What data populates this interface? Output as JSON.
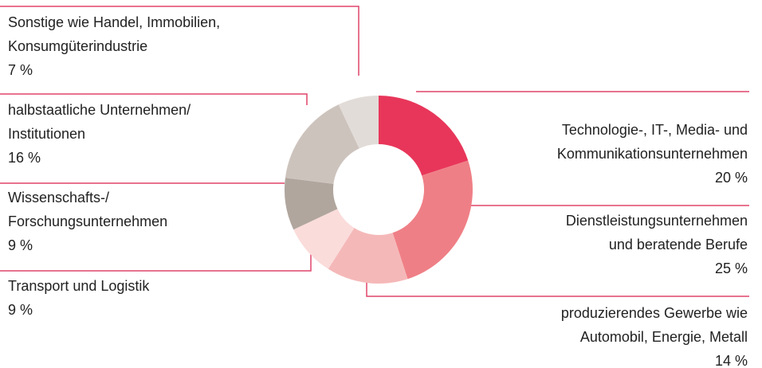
{
  "chart_data": {
    "type": "donut",
    "categories": [
      "Technologie-, IT-, Media- und\nKommunikationsunternehmen",
      "Dienstleistungsunternehmen\nund beratende Berufe",
      "produzierendes Gewerbe wie\nAutomobil, Energie, Metall",
      "Transport und Logistik",
      "Wissenschafts-/\nForschungsunternehmen",
      "halbstaatliche Unternehmen/\nInstitutionen",
      "Sonstige wie Handel, Immobilien,\nKonsumgüterindustrie"
    ],
    "values": [
      20,
      25,
      14,
      9,
      9,
      16,
      7
    ],
    "value_labels": [
      "20 %",
      "25 %",
      "14 %",
      "9 %",
      "9 %",
      "16 %",
      "7 %"
    ],
    "colors": [
      "#e8365a",
      "#ef7f86",
      "#f5b8b8",
      "#fadcdb",
      "#b0a69e",
      "#cdc3bd",
      "#e2dcd8"
    ]
  }
}
